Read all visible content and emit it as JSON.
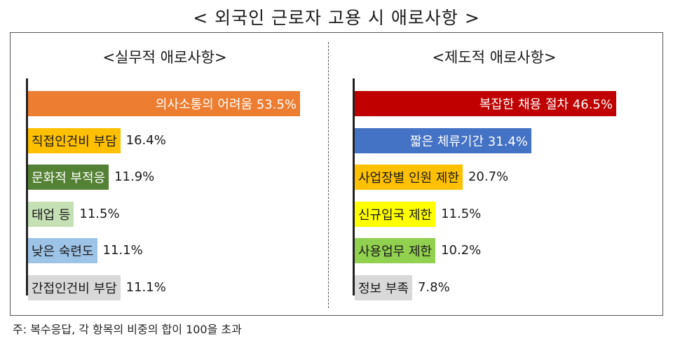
{
  "title": "< 외국인 근로자 고용 시 애로사항 >",
  "footnote": "주: 복수응답, 각 항목의 비중의 합이 100을 초과",
  "chart_data": [
    {
      "type": "bar",
      "orientation": "horizontal",
      "title": "<실무적 애로사항>",
      "unit": "%",
      "xlim": [
        0,
        53.5
      ],
      "categories": [
        "의사소통의 어려움",
        "직접인건비 부담",
        "문화적 부적응",
        "태업 등",
        "낮은 숙련도",
        "간접인건비 부담"
      ],
      "values": [
        53.5,
        16.4,
        11.9,
        11.5,
        11.1,
        11.1
      ],
      "value_labels": [
        "53.5%",
        "16.4%",
        "11.9%",
        "11.5%",
        "11.1%",
        "11.1%"
      ],
      "colors": [
        "#ED7D31",
        "#FFC000",
        "#548235",
        "#C5E0B4",
        "#9DC3E6",
        "#D9D9D9"
      ],
      "text_colors": [
        "#ffffff",
        "#1a1a1a",
        "#ffffff",
        "#1a1a1a",
        "#1a1a1a",
        "#1a1a1a"
      ],
      "label_inside": [
        true,
        false,
        false,
        false,
        false,
        false
      ]
    },
    {
      "type": "bar",
      "orientation": "horizontal",
      "title": "<제도적 애로사항>",
      "unit": "%",
      "xlim": [
        0,
        46.5
      ],
      "categories": [
        "복잡한 채용 절차",
        "짧은 체류기간",
        "사업장별 인원 제한",
        "신규입국 제한",
        "사용업무 제한",
        "정보 부족"
      ],
      "values": [
        46.5,
        31.4,
        20.7,
        11.5,
        10.2,
        7.8
      ],
      "value_labels": [
        "46.5%",
        "31.4%",
        "20.7%",
        "11.5%",
        "10.2%",
        "7.8%"
      ],
      "colors": [
        "#C00000",
        "#4472C4",
        "#FFC000",
        "#FFFF00",
        "#92D050",
        "#D9D9D9"
      ],
      "text_colors": [
        "#ffffff",
        "#ffffff",
        "#1a1a1a",
        "#1a1a1a",
        "#1a1a1a",
        "#1a1a1a"
      ],
      "label_inside": [
        true,
        true,
        false,
        false,
        false,
        false
      ]
    }
  ]
}
